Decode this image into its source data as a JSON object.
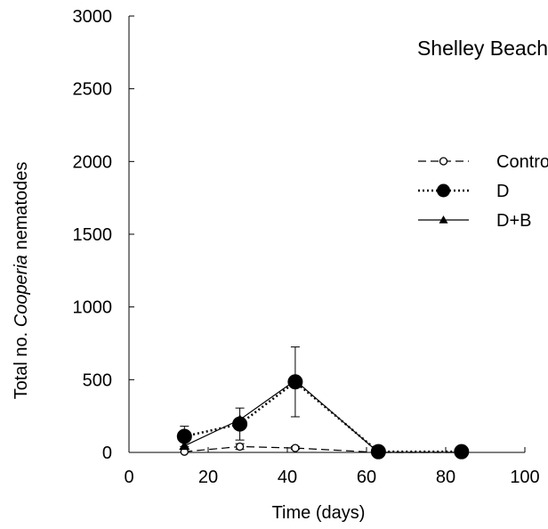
{
  "chart_data": {
    "type": "line",
    "annotation": "Shelley Beach",
    "xlabel": "Time (days)",
    "ylabel_prefix": "Total  no. ",
    "ylabel_italic": "Cooperia",
    "ylabel_suffix": " nematodes",
    "xlim": [
      0,
      100
    ],
    "ylim": [
      0,
      3000
    ],
    "xticks": [
      0,
      20,
      40,
      60,
      80,
      100
    ],
    "yticks": [
      0,
      500,
      1000,
      1500,
      2000,
      2500,
      3000
    ],
    "legend_position": "right",
    "grid": false,
    "series": [
      {
        "name": "Control",
        "line_style": "dashed",
        "marker": "open-circle",
        "color": "#000000",
        "x": [
          14,
          28,
          42,
          63,
          84
        ],
        "y": [
          5,
          40,
          30,
          0,
          0
        ],
        "err": [
          0,
          20,
          10,
          0,
          0
        ]
      },
      {
        "name": "D",
        "line_style": "dotted",
        "marker": "filled-circle",
        "color": "#000000",
        "x": [
          14,
          28,
          42,
          63,
          84
        ],
        "y": [
          110,
          195,
          485,
          5,
          5
        ],
        "err": [
          70,
          110,
          240,
          0,
          0
        ]
      },
      {
        "name": "D+B",
        "line_style": "solid",
        "marker": "filled-triangle",
        "color": "#000000",
        "x": [
          14,
          28,
          42,
          63,
          84
        ],
        "y": [
          45,
          225,
          495,
          0,
          0
        ],
        "err": [
          0,
          0,
          0,
          0,
          0
        ]
      }
    ]
  }
}
